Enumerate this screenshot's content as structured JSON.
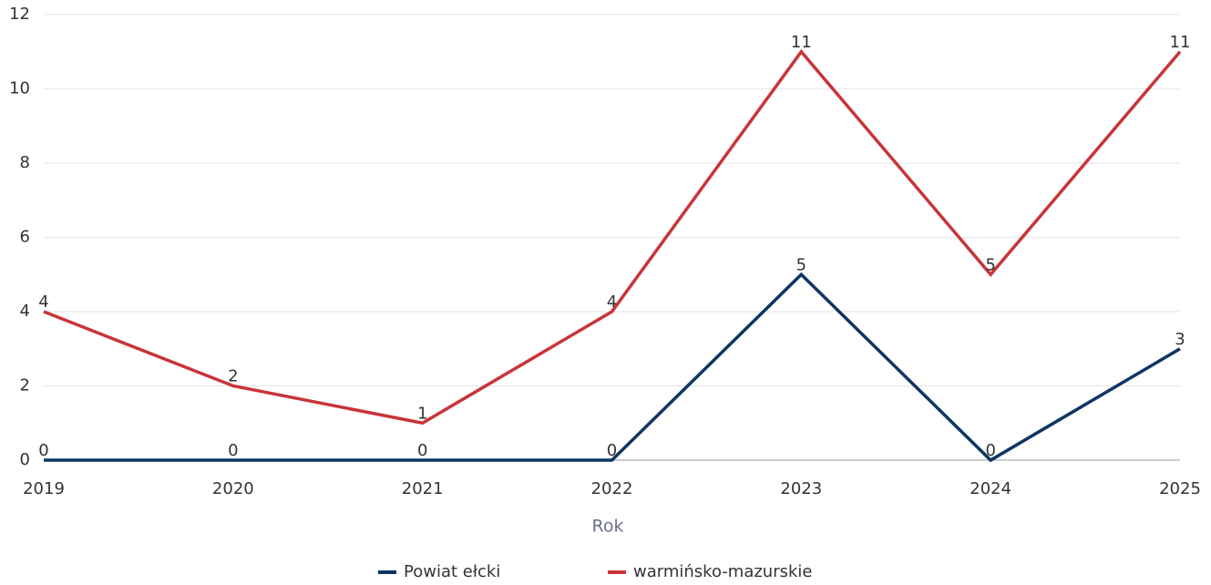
{
  "chart_data": {
    "type": "line",
    "categories": [
      "2019",
      "2020",
      "2021",
      "2022",
      "2023",
      "2024",
      "2025"
    ],
    "x_label": "Rok",
    "series": [
      {
        "name": "Powiat ełcki",
        "color": "#0e3564",
        "values": [
          0,
          0,
          0,
          0,
          5,
          0,
          3
        ]
      },
      {
        "name": "warmińsko-mazurskie",
        "color": "#c8353a",
        "values": [
          4,
          2,
          1,
          4,
          11,
          5,
          11
        ]
      }
    ],
    "ylim": [
      0,
      12
    ],
    "yticks": [
      0,
      2,
      4,
      6,
      8,
      10,
      12
    ],
    "grid": true,
    "legend": "bottom"
  }
}
